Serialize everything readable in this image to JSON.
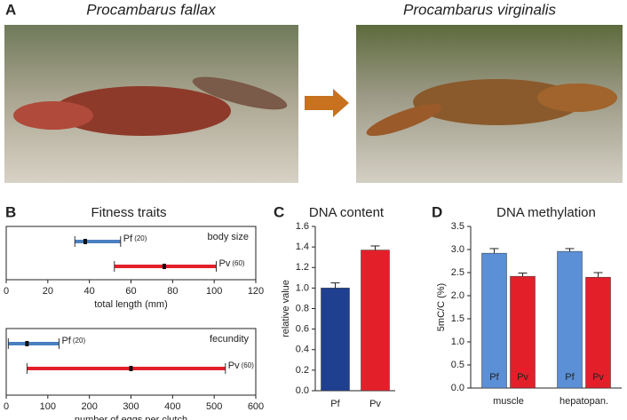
{
  "panel_a": {
    "label": "A",
    "left_title": "Procambarus fallax",
    "right_title": "Procambarus virginalis"
  },
  "chart_data": [
    {
      "type": "range",
      "panel": "B",
      "title": "Fitness traits",
      "annotation": "body size",
      "xlabel": "total length (mm)",
      "xlim": [
        0,
        120
      ],
      "xticks": [
        0,
        20,
        40,
        60,
        80,
        100,
        120
      ],
      "series": [
        {
          "name": "Pf",
          "n": "(20)",
          "color": "#4a80c0",
          "min": 33,
          "mean": 38,
          "max": 55
        },
        {
          "name": "Pv",
          "n": "(60)",
          "color": "#e3202a",
          "min": 52,
          "mean": 76,
          "max": 101
        }
      ]
    },
    {
      "type": "range",
      "annotation": "fecundity",
      "xlabel": "number of eggs per clutch",
      "xlim": [
        0,
        600
      ],
      "xticks": [
        0,
        100,
        200,
        300,
        400,
        500,
        600
      ],
      "series": [
        {
          "name": "Pf",
          "n": "(20)",
          "color": "#4a80c0",
          "min": 5,
          "mean": 50,
          "max": 127
        },
        {
          "name": "Pv",
          "n": "(60)",
          "color": "#e3202a",
          "min": 50,
          "mean": 300,
          "max": 527
        }
      ]
    },
    {
      "type": "bar",
      "panel": "C",
      "title": "DNA content",
      "ylabel": "relative value",
      "categories": [
        "Pf",
        "Pv"
      ],
      "values": [
        1.0,
        1.37
      ],
      "errors": [
        0.05,
        0.04
      ],
      "colors": [
        "#1f3f8f",
        "#e3202a"
      ],
      "ylim": [
        0,
        1.6
      ],
      "yticks": [
        {
          "value": 0,
          "label": "0.0"
        },
        {
          "value": 0.2,
          "label": "0.2"
        },
        {
          "value": 0.4,
          "label": "0.4"
        },
        {
          "value": 0.6,
          "label": "0.6"
        },
        {
          "value": 0.8,
          "label": "0.8"
        },
        {
          "value": 1.0,
          "label": "1.0"
        },
        {
          "value": 1.2,
          "label": "1.2"
        },
        {
          "value": 1.4,
          "label": "1.4"
        },
        {
          "value": 1.6,
          "label": "1.6"
        }
      ]
    },
    {
      "type": "groupbar",
      "panel": "D",
      "title": "DNA methylation",
      "ylabel": "5mC/C (%)",
      "categories": [
        "muscle",
        "hepatopan."
      ],
      "ylim": [
        0,
        3.5
      ],
      "yticks": [
        {
          "value": 0,
          "label": "0.0"
        },
        {
          "value": 0.5,
          "label": "0.5"
        },
        {
          "value": 1.0,
          "label": "1.0"
        },
        {
          "value": 1.5,
          "label": "1.5"
        },
        {
          "value": 2.0,
          "label": "2.0"
        },
        {
          "value": 2.5,
          "label": "2.5"
        },
        {
          "value": 3.0,
          "label": "3.0"
        },
        {
          "value": 3.5,
          "label": "3.5"
        }
      ],
      "series": [
        {
          "name": "Pf",
          "color": "#5b8fd6",
          "values": [
            2.92,
            2.96
          ],
          "errors": [
            0.1,
            0.06
          ]
        },
        {
          "name": "Pv",
          "color": "#e3202a",
          "values": [
            2.42,
            2.4
          ],
          "errors": [
            0.07,
            0.1
          ]
        }
      ]
    }
  ]
}
